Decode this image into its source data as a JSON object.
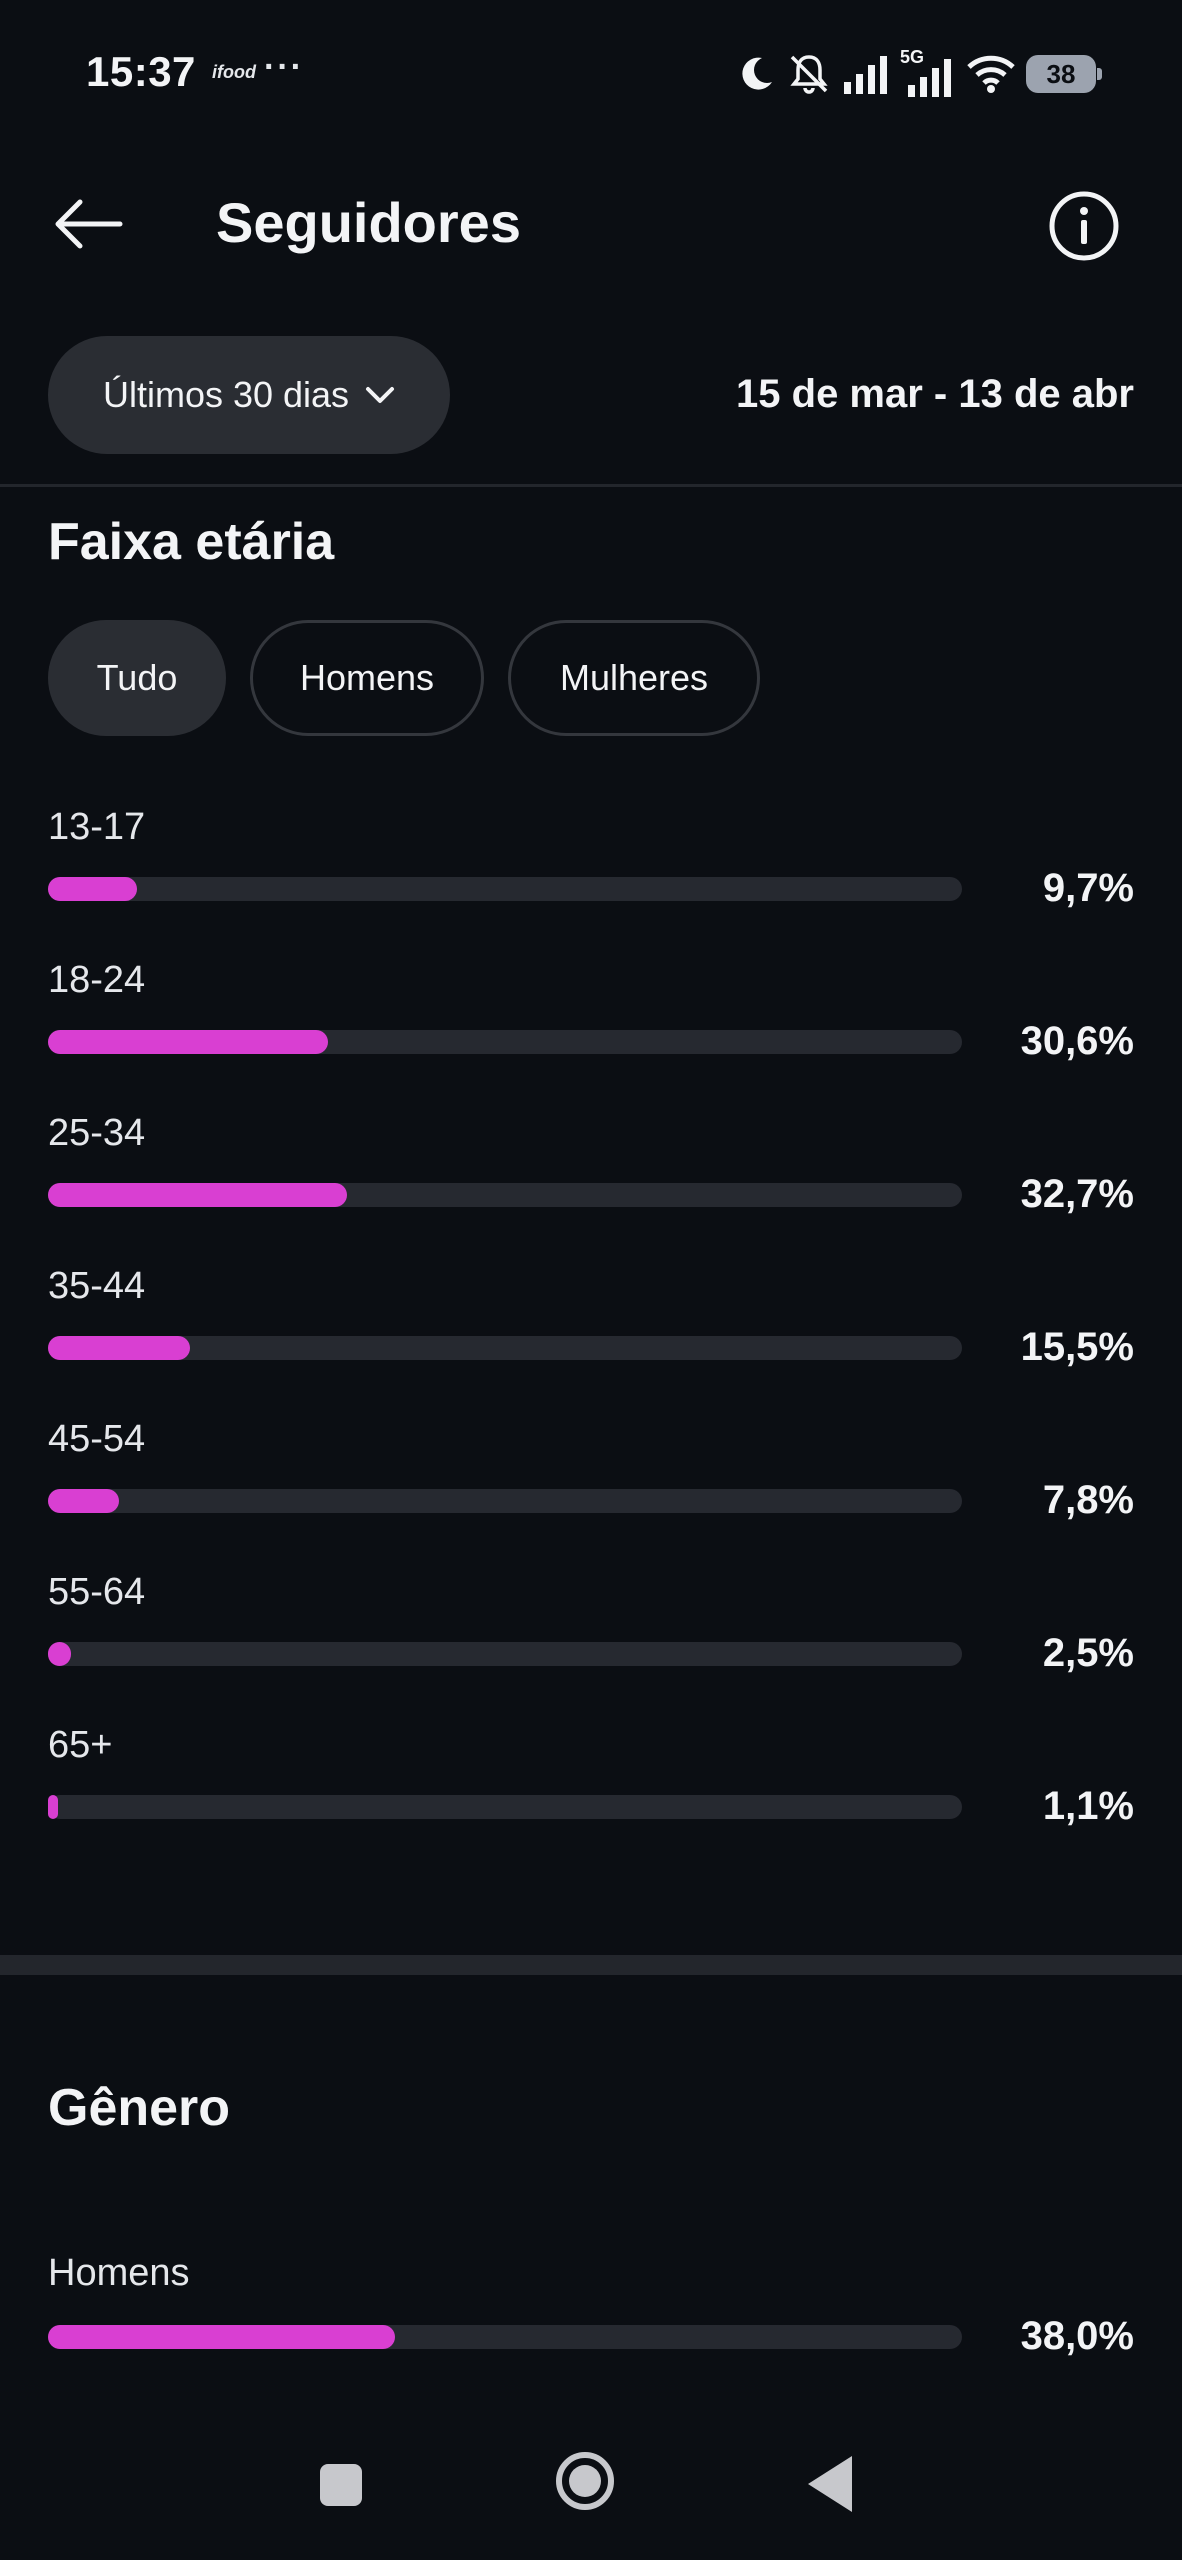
{
  "status_bar": {
    "time": "15:37",
    "app_badge": "ifood",
    "more_dots": "···",
    "network_label": "5G",
    "battery": "38",
    "icons": [
      "moon-icon",
      "bell-off-icon",
      "signal-icon",
      "signal-5g-icon",
      "wifi-icon",
      "battery-icon"
    ]
  },
  "header": {
    "title": "Seguidores",
    "back_icon": "arrow-left-icon",
    "info_icon": "info-icon"
  },
  "period": {
    "label": "Últimos 30 dias",
    "icon": "chevron-down-icon",
    "date_range": "15 de mar - 13 de abr"
  },
  "age_section": {
    "title": "Faixa etária",
    "filters": [
      {
        "label": "Tudo",
        "active": true
      },
      {
        "label": "Homens",
        "active": false
      },
      {
        "label": "Mulheres",
        "active": false
      }
    ],
    "rows": [
      {
        "label": "13-17",
        "value": "9,7%",
        "fraction": 0.097
      },
      {
        "label": "18-24",
        "value": "30,6%",
        "fraction": 0.306
      },
      {
        "label": "25-34",
        "value": "32,7%",
        "fraction": 0.327
      },
      {
        "label": "35-44",
        "value": "15,5%",
        "fraction": 0.155
      },
      {
        "label": "45-54",
        "value": "7,8%",
        "fraction": 0.078
      },
      {
        "label": "55-64",
        "value": "2,5%",
        "fraction": 0.025
      },
      {
        "label": "65+",
        "value": "1,1%",
        "fraction": 0.011
      }
    ]
  },
  "gender_section": {
    "title": "Gênero",
    "rows": [
      {
        "label": "Homens",
        "value": "38,0%",
        "fraction": 0.38
      }
    ]
  },
  "colors": {
    "background": "#0b0e13",
    "accent": "#d93fd2",
    "track": "#262930",
    "chip": "#2a2d33"
  },
  "nav_bar": {
    "icons": [
      "recent-apps-icon",
      "home-icon",
      "back-triangle-icon"
    ]
  }
}
